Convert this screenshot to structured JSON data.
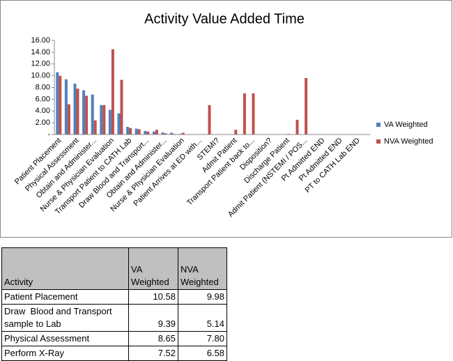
{
  "chart_data": {
    "type": "bar",
    "title": "Activity Value Added Time",
    "categories": [
      "Patient Placement",
      null,
      "Physical Assessment",
      null,
      "Obtain and Administer...",
      null,
      "Nurse & Physician Evaluation",
      null,
      "Transport Patient to CATH Lab",
      null,
      "Draw  Blood and Transport...",
      null,
      "Obtain and Administer...",
      null,
      "Nurse & Physician Evaluation",
      null,
      "Patient Arrives at ED with...",
      null,
      "STEMI?",
      null,
      "Admit Patient",
      null,
      "Transport Patient back to...",
      null,
      "Disposition?",
      null,
      "Discharge Patient",
      null,
      "Admit Patient (NSTEMI / POS...",
      null,
      "Pt Admitted END",
      null,
      "Pt Admitted END",
      null,
      "PT to CATH Lab END",
      null
    ],
    "series": [
      {
        "name": "VA Weighted",
        "color": "#4f81bd",
        "values": [
          10.58,
          9.39,
          8.65,
          7.52,
          6.8,
          5.0,
          4.2,
          3.6,
          1.3,
          1.0,
          0.6,
          0.5,
          0.35,
          0.3,
          0.1,
          0.05,
          0,
          0,
          0,
          0,
          0,
          0,
          0,
          0,
          0,
          0,
          0,
          0,
          0,
          0,
          0,
          0,
          0,
          0,
          0,
          0
        ]
      },
      {
        "name": "NVA Weighted",
        "color": "#c0504d",
        "values": [
          9.98,
          5.14,
          7.8,
          6.58,
          2.4,
          5.0,
          14.5,
          9.3,
          1.1,
          0.9,
          0.5,
          0.8,
          0.2,
          0.1,
          0.3,
          0,
          0,
          5.0,
          0,
          0,
          0.8,
          7.0,
          7.0,
          0,
          0,
          0,
          0.1,
          2.5,
          9.6,
          0,
          0,
          0,
          0,
          0,
          0,
          0
        ]
      }
    ],
    "ylim": [
      0,
      16
    ],
    "yticks": [
      {
        "value": 0,
        "label": "-"
      },
      {
        "value": 2,
        "label": "2.00"
      },
      {
        "value": 4,
        "label": "4.00"
      },
      {
        "value": 6,
        "label": "6.00"
      },
      {
        "value": 8,
        "label": "8.00"
      },
      {
        "value": 10,
        "label": "10.00"
      },
      {
        "value": 12,
        "label": "12.00"
      },
      {
        "value": 14,
        "label": "14.00"
      },
      {
        "value": 16,
        "label": "16.00"
      }
    ],
    "grid": false,
    "legend": "right"
  },
  "table": {
    "header": [
      "Activity",
      "VA Weighted",
      "NVA Weighted"
    ],
    "rows": [
      [
        "Patient Placement",
        "10.58",
        "9.98"
      ],
      [
        "Draw  Blood and Transport sample to Lab",
        "9.39",
        "5.14"
      ],
      [
        "Physical Assessment",
        "8.65",
        "7.80"
      ],
      [
        "Perform X-Ray",
        "7.52",
        "6.58"
      ]
    ]
  }
}
